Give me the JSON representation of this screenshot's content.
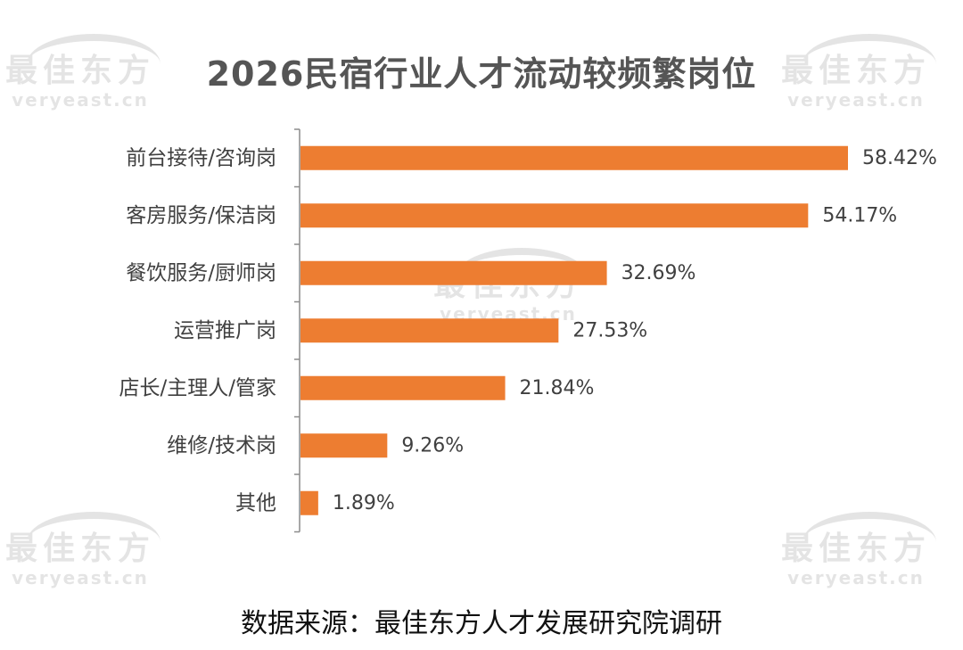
{
  "title": "2026民宿行业人才流动较频繁岗位",
  "source": "数据来源：最佳东方人才发展研究院调研",
  "watermark": {
    "logo": "最佳东方",
    "url": "veryeast.cn"
  },
  "colors": {
    "bar": "#ED7D31",
    "axis": "#8c8c8c",
    "label": "#404040"
  },
  "chart_data": {
    "type": "bar",
    "orientation": "horizontal",
    "categories": [
      "前台接待/咨询岗",
      "客房服务/保洁岗",
      "餐饮服务/厨师岗",
      "运营推广岗",
      "店长/主理人/管家",
      "维修/技术岗",
      "其他"
    ],
    "values": [
      58.42,
      54.17,
      32.69,
      27.53,
      21.84,
      9.26,
      1.89
    ],
    "value_labels": [
      "58.42%",
      "54.17%",
      "32.69%",
      "27.53%",
      "21.84%",
      "9.26%",
      "1.89%"
    ],
    "unit": "%",
    "xlim": [
      0,
      60
    ],
    "grid": false,
    "legend": "none"
  }
}
